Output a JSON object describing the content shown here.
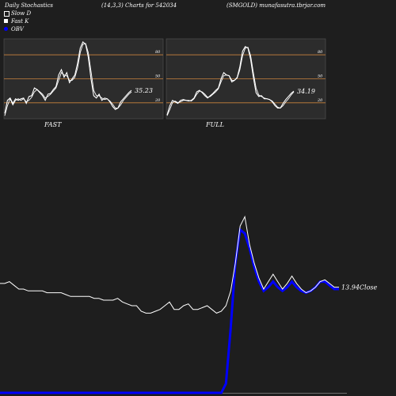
{
  "header": {
    "left": "Daily Stochastics",
    "middle": "(14,3,3) Charts for 542034",
    "right": "(SMGOLD) munafasutra.tbrjar.com"
  },
  "legend": [
    {
      "label": "Slow  D",
      "color": "#ffffff"
    },
    {
      "label": "Fast K",
      "color": "#ffffff"
    },
    {
      "label": "OBV",
      "color": "#0000ff"
    }
  ],
  "panels": {
    "fast_label": "FAST",
    "full_label": "FULL"
  },
  "colors": {
    "background": "#1e1e1e",
    "panel_bg": "#2c2c2c",
    "level_line": "#c8823c",
    "stoch_line": "#ffffff",
    "price_line": "#ffffff",
    "obv_line": "#0000ff"
  },
  "chart_data": [
    {
      "type": "line",
      "name": "FAST",
      "ylim": [
        0,
        100
      ],
      "levels": [
        20,
        50,
        80
      ],
      "ytick_labels": [
        "80",
        "50",
        "20"
      ],
      "last_value_label": "35.23",
      "series": [
        {
          "values": [
            5,
            22,
            25,
            18,
            24,
            22,
            24,
            25,
            18,
            27,
            28,
            38,
            36,
            32,
            28,
            22,
            30,
            31,
            36,
            40,
            55,
            62,
            52,
            58,
            45,
            50,
            55,
            70,
            90,
            98,
            95,
            78,
            50,
            28,
            25,
            30,
            22,
            25,
            24,
            20,
            14,
            10,
            12,
            20,
            24,
            28,
            32,
            35
          ]
        },
        {
          "values": [
            2,
            15,
            24,
            16,
            22,
            24,
            22,
            24,
            20,
            22,
            26,
            33,
            36,
            33,
            30,
            25,
            27,
            30,
            34,
            38,
            48,
            58,
            55,
            54,
            48,
            48,
            52,
            64,
            84,
            95,
            96,
            84,
            60,
            35,
            28,
            28,
            25,
            23,
            24,
            21,
            17,
            12,
            12,
            16,
            22,
            26,
            30,
            33
          ]
        }
      ]
    },
    {
      "type": "line",
      "name": "FULL",
      "ylim": [
        0,
        100
      ],
      "levels": [
        20,
        50,
        80
      ],
      "ytick_labels": [
        "80",
        "50",
        "20"
      ],
      "last_value_label": "34.19",
      "series": [
        {
          "values": [
            3,
            15,
            22,
            20,
            18,
            22,
            23,
            22,
            21,
            22,
            25,
            33,
            35,
            32,
            28,
            25,
            28,
            31,
            35,
            38,
            50,
            58,
            55,
            54,
            46,
            48,
            52,
            66,
            86,
            92,
            90,
            75,
            52,
            32,
            27,
            28,
            24,
            24,
            23,
            20,
            15,
            12,
            12,
            18,
            23,
            27,
            31,
            34
          ]
        },
        {
          "values": [
            2,
            10,
            19,
            21,
            19,
            20,
            22,
            22,
            22,
            21,
            24,
            30,
            34,
            33,
            30,
            26,
            27,
            30,
            33,
            37,
            46,
            54,
            55,
            54,
            48,
            48,
            51,
            62,
            80,
            90,
            91,
            80,
            58,
            38,
            29,
            27,
            25,
            24,
            23,
            21,
            17,
            13,
            12,
            15,
            20,
            24,
            29,
            33
          ]
        }
      ]
    },
    {
      "type": "line",
      "name": "price",
      "ylim": [
        0,
        100
      ],
      "last_value_label": "13.94Close",
      "series": [
        {
          "values": [
            59,
            59,
            60,
            58,
            56,
            56,
            55,
            55,
            55,
            55,
            54,
            54,
            54,
            54,
            53,
            52,
            52,
            52,
            52,
            52,
            51,
            51,
            50,
            50,
            50,
            51,
            49,
            48,
            47,
            47,
            44,
            43,
            43,
            44,
            45,
            47,
            49,
            45,
            45,
            47,
            48,
            45,
            45,
            46,
            47,
            45,
            43,
            44,
            47,
            55,
            70,
            90,
            95,
            80,
            70,
            62,
            56,
            60,
            64,
            60,
            56,
            59,
            63,
            59,
            56,
            54,
            55,
            57,
            60,
            61,
            59,
            57,
            57
          ]
        },
        {
          "values": [
            0,
            0,
            0,
            0,
            0,
            0,
            0,
            0,
            0,
            0,
            0,
            0,
            0,
            0,
            0,
            0,
            0,
            0,
            0,
            0,
            0,
            0,
            0,
            0,
            0,
            0,
            0,
            0,
            0,
            0,
            0,
            0,
            0,
            0,
            0,
            0,
            0,
            0,
            0,
            0,
            0,
            0,
            0,
            0,
            0,
            0,
            0,
            0,
            5,
            35,
            70,
            88,
            86,
            78,
            68,
            60,
            55,
            57,
            60,
            57,
            55,
            57,
            60,
            57,
            55,
            54,
            55,
            57,
            60,
            60,
            58,
            56,
            56
          ]
        }
      ]
    }
  ]
}
